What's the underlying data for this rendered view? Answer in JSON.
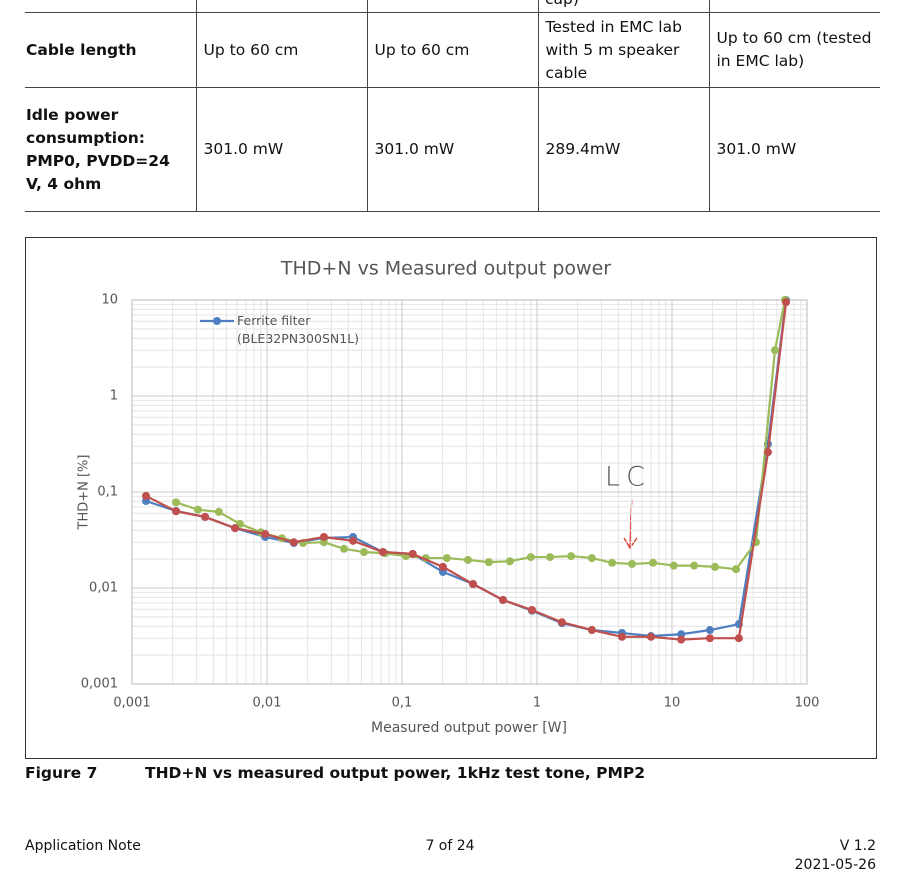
{
  "table": {
    "fragment": "cap)",
    "rows": [
      [
        "Cable length",
        "Up to 60 cm",
        "Up to 60 cm",
        "Tested in EMC lab with 5 m speaker cable",
        "Up to 60 cm (tested in EMC lab)"
      ],
      [
        "Idle power consumption: PMP0, PVDD=24 V, 4 ohm",
        "301.0 mW",
        "301.0 mW",
        "289.4mW",
        "301.0 mW"
      ]
    ]
  },
  "chart_data": {
    "type": "line",
    "title": "THD+N vs Measured output power",
    "xlabel": "Measured output power [W]",
    "ylabel": "THD+N [%]",
    "log_x": true,
    "log_y": true,
    "xlim": [
      0.001,
      100
    ],
    "ylim": [
      0.001,
      10
    ],
    "xticks": [
      {
        "value": 0.001,
        "label": "0,001"
      },
      {
        "value": 0.01,
        "label": "0,01"
      },
      {
        "value": 0.1,
        "label": "0,1"
      },
      1,
      10,
      100
    ],
    "yticks": [
      {
        "value": 0.001,
        "label": "0,001"
      },
      {
        "value": 0.01,
        "label": "0,01"
      },
      {
        "value": 0.1,
        "label": "0,1"
      },
      1,
      10
    ],
    "grid": true,
    "minor_grid": true,
    "legend": "upper left",
    "series": [
      {
        "name": "Ferrite filter (BLE32PN300SN1L)",
        "color": "#4f7fc0",
        "x": [
          0.00127,
          0.00212,
          0.00348,
          0.0058,
          0.0097,
          0.0158,
          0.0264,
          0.0434,
          0.0722,
          0.12,
          0.201,
          0.336,
          0.56,
          0.918,
          1.53,
          2.55,
          4.26,
          6.99,
          11.7,
          19.1,
          31.3,
          51.4,
          69.9
        ],
        "values": [
          0.0806,
          0.0634,
          0.055,
          0.042,
          0.034,
          0.0294,
          0.0332,
          0.034,
          0.0237,
          0.0226,
          0.0147,
          0.011,
          0.0075,
          0.0058,
          0.0043,
          0.00365,
          0.0034,
          0.00316,
          0.0033,
          0.00365,
          0.0042,
          0.316,
          10
        ]
      },
      {
        "color": "#9bbb59",
        "x": [
          0.00212,
          0.00308,
          0.0044,
          0.0063,
          0.009,
          0.0129,
          0.0185,
          0.0264,
          0.0372,
          0.0523,
          0.0748,
          0.107,
          0.15,
          0.215,
          0.308,
          0.44,
          0.63,
          0.9,
          1.25,
          1.79,
          2.55,
          3.6,
          5.06,
          7.23,
          10.3,
          14.6,
          20.8,
          29.8,
          41.9,
          57.9,
          68.7
        ],
        "values": [
          0.078,
          0.0654,
          0.062,
          0.0465,
          0.038,
          0.033,
          0.0294,
          0.03,
          0.0256,
          0.0237,
          0.023,
          0.0215,
          0.0205,
          0.0205,
          0.0196,
          0.0186,
          0.019,
          0.021,
          0.021,
          0.0215,
          0.0205,
          0.0183,
          0.0178,
          0.0183,
          0.0171,
          0.0171,
          0.0166,
          0.0157,
          0.03,
          3.0,
          10
        ]
      },
      {
        "color": "#c0504d",
        "x": [
          0.00127,
          0.00212,
          0.00348,
          0.0058,
          0.0097,
          0.0158,
          0.0264,
          0.0434,
          0.0722,
          0.12,
          0.201,
          0.336,
          0.56,
          0.918,
          1.53,
          2.55,
          4.26,
          6.99,
          11.7,
          19.1,
          31.3,
          51.4,
          69.9
        ],
        "values": [
          0.091,
          0.063,
          0.055,
          0.042,
          0.0365,
          0.03,
          0.034,
          0.031,
          0.0237,
          0.0226,
          0.0166,
          0.011,
          0.0075,
          0.0059,
          0.0044,
          0.00365,
          0.0031,
          0.0031,
          0.0029,
          0.003,
          0.003,
          0.26,
          9.5
        ]
      }
    ],
    "annotations": [
      {
        "text": "LC",
        "color": "#e0332d"
      }
    ]
  },
  "caption": {
    "label": "Figure 7",
    "text": "THD+N vs measured output power, 1kHz test tone, PMP2"
  },
  "footer": {
    "left": "Application Note",
    "center": "7 of 24",
    "version": "V 1.2",
    "date": "2021-05-26"
  }
}
